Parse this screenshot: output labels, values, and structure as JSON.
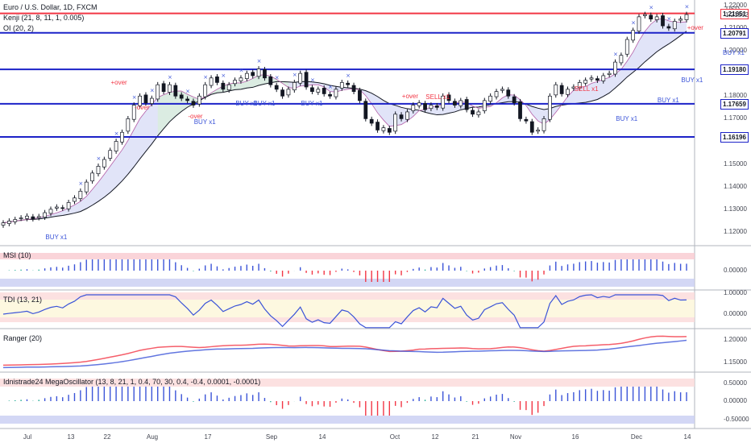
{
  "header": {
    "symbol": "Euro / U.S. Dollar, 1D, FXCM",
    "indicator1": "Kenji (21, 8, 11, 1, 0.005)",
    "indicator2": "OI (20, 2)",
    "currency": "USD"
  },
  "chart_data": {
    "type": "candlestick",
    "ylim": [
      1.115,
      1.221
    ],
    "y_ticks": [
      "1.22000",
      "1.21000",
      "1.20000",
      "1.19000",
      "1.18000",
      "1.17000",
      "1.16000",
      "1.15000",
      "1.14000",
      "1.13000",
      "1.12000"
    ],
    "x_ticks": [
      "Jul",
      "13",
      "22",
      "Aug",
      "17",
      "Sep",
      "14",
      "Oct",
      "12",
      "21",
      "Nov",
      "16",
      "Dec",
      "14"
    ],
    "closes": [
      1.124,
      1.1248,
      1.1255,
      1.1262,
      1.127,
      1.1258,
      1.1268,
      1.1285,
      1.13,
      1.131,
      1.1305,
      1.133,
      1.135,
      1.138,
      1.142,
      1.146,
      1.149,
      1.152,
      1.156,
      1.16,
      1.164,
      1.17,
      1.176,
      1.18,
      1.177,
      1.179,
      1.185,
      1.182,
      1.185,
      1.18,
      1.179,
      1.178,
      1.176,
      1.18,
      1.185,
      1.188,
      1.186,
      1.183,
      1.185,
      1.187,
      1.188,
      1.19,
      1.189,
      1.192,
      1.188,
      1.185,
      1.183,
      1.18,
      1.183,
      1.186,
      1.19,
      1.184,
      1.182,
      1.183,
      1.181,
      1.18,
      1.183,
      1.186,
      1.185,
      1.182,
      1.178,
      1.17,
      1.168,
      1.165,
      1.166,
      1.164,
      1.172,
      1.17,
      1.173,
      1.176,
      1.177,
      1.174,
      1.176,
      1.175,
      1.18,
      1.178,
      1.176,
      1.178,
      1.174,
      1.172,
      1.173,
      1.178,
      1.18,
      1.182,
      1.183,
      1.18,
      1.177,
      1.17,
      1.169,
      1.164,
      1.165,
      1.17,
      1.18,
      1.185,
      1.181,
      1.183,
      1.184,
      1.186,
      1.187,
      1.188,
      1.187,
      1.189,
      1.19,
      1.195,
      1.198,
      1.205,
      1.209,
      1.215,
      1.216,
      1.214,
      1.215,
      1.211,
      1.21,
      1.213,
      1.214,
      1.216
    ],
    "levels": [
      {
        "value": 1.21651,
        "label": "1.21651",
        "color": "#f23645"
      },
      {
        "value": 1.20791,
        "label": "1.20791",
        "color": "#1c22c8"
      },
      {
        "value": 1.1918,
        "label": "1.19180",
        "color": "#1c22c8"
      },
      {
        "value": 1.17659,
        "label": "1.17659",
        "color": "#1c22c8"
      },
      {
        "value": 1.16196,
        "label": "1.16196",
        "color": "#1c22c8"
      }
    ],
    "current_price": "1.21562",
    "annotations": [
      {
        "text": "BUY x1",
        "color": "#3b54d8",
        "candle": 9,
        "price": 1.1195
      },
      {
        "text": "+over",
        "color": "#f23645",
        "candle": 20,
        "price": 1.188
      },
      {
        "text": "-over",
        "color": "#f23645",
        "candle": 24,
        "price": 1.177
      },
      {
        "text": "-over",
        "color": "#f23645",
        "candle": 33,
        "price": 1.173
      },
      {
        "text": "BUY x1",
        "color": "#3b54d8",
        "candle": 34,
        "price": 1.1705
      },
      {
        "text": "BUY x1",
        "color": "#3b54d8",
        "candle": 41,
        "price": 1.1785
      },
      {
        "text": "BUY x1",
        "color": "#3b54d8",
        "candle": 44,
        "price": 1.1785
      },
      {
        "text": "BUY x1",
        "color": "#3b54d8",
        "candle": 52,
        "price": 1.1785
      },
      {
        "text": "+over",
        "color": "#f23645",
        "candle": 69,
        "price": 1.182
      },
      {
        "text": "SELL x1",
        "color": "#f23645",
        "candle": 73,
        "price": 1.1815
      },
      {
        "text": "SELL x1",
        "color": "#f23645",
        "candle": 98,
        "price": 1.185
      },
      {
        "text": "BUY x1",
        "color": "#3b54d8",
        "candle": 105,
        "price": 1.172
      },
      {
        "text": "BUY x1",
        "color": "#3b54d8",
        "candle": 112,
        "price": 1.18
      },
      {
        "text": "BUY x1",
        "color": "#3b54d8",
        "candle": 116,
        "price": 1.189
      },
      {
        "text": "+over",
        "color": "#f23645",
        "candle": 117,
        "price": 1.212
      },
      {
        "text": "BUY x1",
        "color": "#3b54d8",
        "candle": 123,
        "price": 1.201
      }
    ],
    "panes": [
      {
        "name": "MSI (10)",
        "ticks": [
          "0.00000"
        ]
      },
      {
        "name": "TDI (13, 21)",
        "ticks": [
          "1.00000",
          "0.00000"
        ]
      },
      {
        "name": "Ranger (20)",
        "ticks": [
          "1.20000",
          "1.15000"
        ]
      },
      {
        "name": "Idnistrade24 MegaOscillator (13, 8, 21, 1, 0.4, 70, 30, 0.4, -0.4, 0.0001, -0.0001)",
        "ticks": [
          "0.50000",
          "0.00000",
          "-0.50000"
        ]
      }
    ]
  },
  "colors": {
    "up": "#ffffff",
    "down": "#131722",
    "blue": "#1c22c8",
    "red": "#f23645",
    "cloud": "#c8cdf2",
    "cloud_green": "#d8f0d8"
  }
}
